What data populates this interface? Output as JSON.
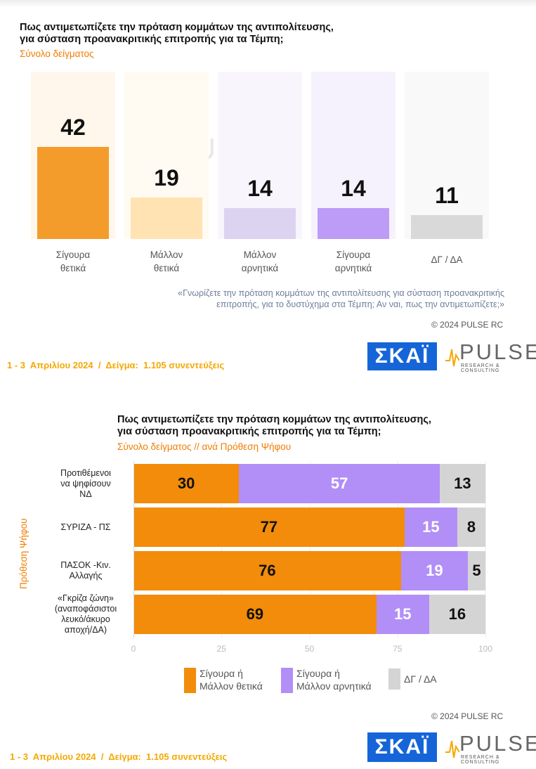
{
  "chart_data": [
    {
      "type": "bar",
      "title": "Πως αντιμετωπίζετε την πρόταση κομμάτων της αντιπολίτευσης,\nγια σύσταση προανακριτικής επιτροπής για τα Τέμπη;",
      "subtitle": "Σύνολο δείγματος",
      "categories": [
        "Σίγουρα θετικά",
        "Μάλλον θετικά",
        "Μάλλον αρνητικά",
        "Σίγουρα αρνητικά",
        "ΔΓ / ΔΑ"
      ],
      "values": [
        42,
        19,
        14,
        14,
        11
      ],
      "colors": [
        "#f28c0a",
        "#ffdfa8",
        "#d8cdf0",
        "#b28ef7",
        "#d4d4d4"
      ],
      "bg_colors": [
        "#fff7ec",
        "#fffaf2",
        "#f8f6fc",
        "#f6f2fd",
        "#f9f9f9"
      ],
      "ylim": [
        0,
        50
      ]
    },
    {
      "type": "bar",
      "orientation": "horizontal-stacked",
      "title": "Πως αντιμετωπίζετε την πρόταση κομμάτων της αντιπολίτευσης,\nγια σύσταση προανακριτικής επιτροπής για τα Τέμπη;",
      "subtitle": "Σύνολο δείγματος // ανά Πρόθεση Ψήφου",
      "ylabel": "Πρόθεση Ψήφου",
      "categories": [
        "Προτιθέμενοι\nνα ψηφίσουν\nΝΔ",
        "ΣΥΡΙΖΑ - ΠΣ",
        "ΠΑΣΟΚ -Κιν.\nΑλλαγής",
        "«Γκρίζα ζώνη»\n(αναποφάσιστοι\nλευκό/άκυρο\nαποχή/ΔΑ)"
      ],
      "series": [
        {
          "name": "Σίγουρα ή Μάλλον θετικά",
          "color": "#f28c0a",
          "values": [
            30,
            77,
            76,
            69
          ]
        },
        {
          "name": "Σίγουρα ή Μάλλον αρνητικά",
          "color": "#b28ef7",
          "values": [
            57,
            15,
            19,
            15
          ]
        },
        {
          "name": "ΔΓ / ΔΑ",
          "color": "#d4d4d4",
          "values": [
            13,
            8,
            5,
            16
          ]
        }
      ],
      "xlim": [
        0,
        100
      ],
      "xticks": [
        "0",
        "25",
        "50",
        "75",
        "100"
      ],
      "legend_labels": [
        "Σίγουρα ή\nΜάλλον θετικά",
        "Σίγουρα ή\nΜάλλον αρνητικά",
        "ΔΓ / ΔΑ"
      ],
      "legend_position": "bottom"
    }
  ],
  "page": {
    "top": {
      "note": "«Γνωρίζετε την πρόταση κομμάτων της αντιπολίτευσης για σύσταση προανακριτικής\nεπιτροπής, για το δυστύχημα στα Τέμπη; Αν ναι, πως την αντιμετωπίζετε;»",
      "copyright": "© 2024 PULSE RC",
      "footer": "1 - 3  Απριλίου 2024  /  Δείγμα:  1.105 συνεντεύξεις"
    },
    "bottom": {
      "copyright": "© 2024 PULSE RC",
      "footer": "1 - 3  Απριλίου 2024  /  Δείγμα:  1.105 συνεντεύξεις"
    },
    "logos": {
      "skai": "ΣΚΑΪ",
      "pulse": "PULSE",
      "pulse_sub": "RESEARCH & CONSULTING"
    }
  }
}
